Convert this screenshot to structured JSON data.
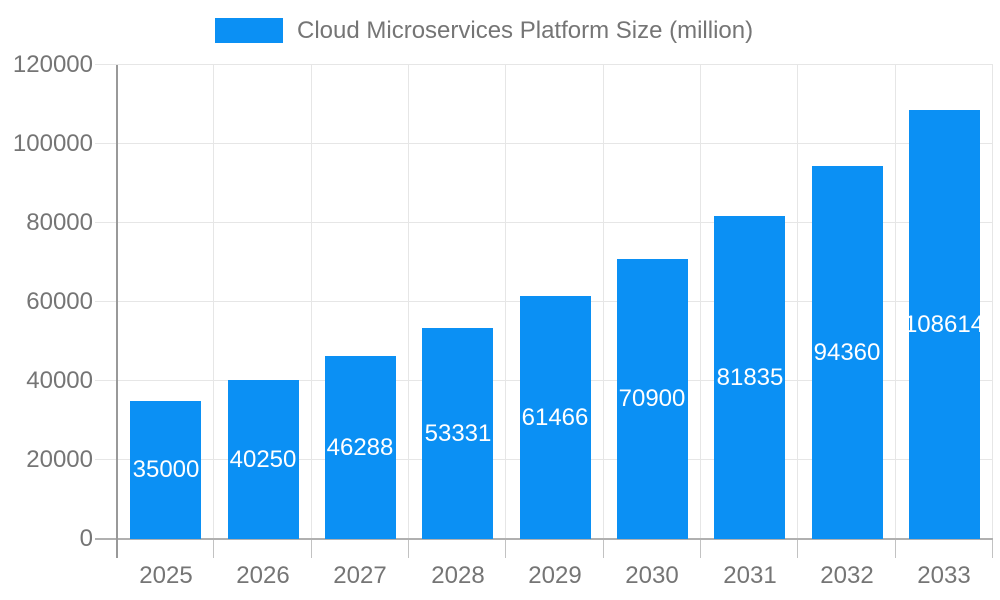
{
  "chart_data": {
    "type": "bar",
    "title": "Cloud Microservices Platform Size (million)",
    "legend": {
      "position": "top",
      "entries": [
        "Cloud Microservices Platform Size (million)"
      ]
    },
    "categories": [
      "2025",
      "2026",
      "2027",
      "2028",
      "2029",
      "2030",
      "2031",
      "2032",
      "2033"
    ],
    "values": [
      35000,
      40250,
      46288,
      53331,
      61466,
      70900,
      81835,
      94360,
      108614
    ],
    "xlabel": "",
    "ylabel": "",
    "ylim": [
      0,
      120000
    ],
    "ytick_step": 20000,
    "ytick_labels": [
      "0",
      "20000",
      "40000",
      "60000",
      "80000",
      "100000",
      "120000"
    ],
    "grid": true,
    "value_labels_inside_bars": true,
    "colors": {
      "bar": "#0b90f4",
      "value_label": "#ffffff",
      "axis_text": "#757575",
      "grid_line": "#e6e6e6",
      "axis_line": "#999999",
      "baseline": "#b0b0b0",
      "tick": "#c2c2c2"
    }
  }
}
